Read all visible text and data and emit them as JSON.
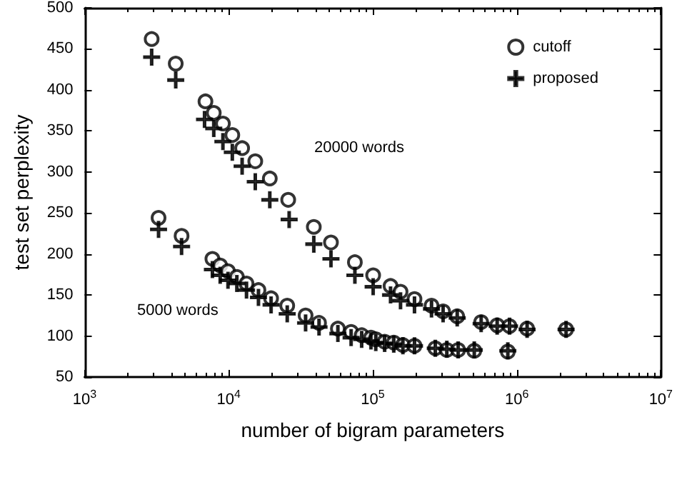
{
  "chart_data": {
    "type": "scatter",
    "xlabel": "number of bigram parameters",
    "ylabel": "test set perplexity",
    "log": "x",
    "xlim": [
      1000,
      10000000
    ],
    "xticks": [
      {
        "value": 1000,
        "label": "10$^{3}$"
      },
      {
        "value": 10000,
        "label": "10$^{4}$"
      },
      {
        "value": 100000,
        "label": "10$^{5}$"
      },
      {
        "value": 1000000,
        "label": "10$^{6}$"
      },
      {
        "value": 10000000,
        "label": "10$^{7}$"
      }
    ],
    "ylim": [
      50,
      500
    ],
    "yticks": [
      50,
      100,
      150,
      200,
      250,
      300,
      350,
      400,
      450,
      500
    ],
    "grid": false,
    "legend": "top right",
    "series": [
      {
        "name": "cutoff",
        "color": "#000000",
        "marker": "circle",
        "x": [
          2920,
          4290,
          6900,
          7880,
          9120,
          10600,
          12400,
          15300,
          19300,
          25900,
          39000,
          51300,
          75200,
          100700,
          133000,
          156000,
          195000,
          256000,
          308000,
          386000,
          566000,
          731000,
          891000,
          1180000,
          2200000,
          3260,
          4710,
          7710,
          8730,
          9890,
          11400,
          13300,
          16100,
          19700,
          25500,
          34200,
          42400,
          57300,
          70800,
          83800,
          97200,
          105000,
          121000,
          140000,
          162000,
          195000,
          272000,
          327000,
          392000,
          507000,
          867000
        ],
        "values": [
          462,
          432,
          386,
          372,
          359,
          345,
          329,
          313,
          292,
          266,
          233,
          214,
          190,
          174,
          161,
          154,
          145,
          137,
          130,
          124,
          117,
          113,
          112,
          109,
          108,
          244,
          222,
          194,
          186,
          179,
          172,
          164,
          156,
          146,
          137,
          125,
          116,
          109,
          105,
          101,
          98,
          96,
          93,
          92,
          89,
          88,
          85,
          83,
          83,
          82,
          81
        ]
      },
      {
        "name": "proposed",
        "color": "#000000",
        "marker": "cross",
        "x": [
          2920,
          4290,
          6800,
          7880,
          9120,
          10600,
          12400,
          15300,
          19300,
          26300,
          39000,
          51300,
          75200,
          100700,
          133000,
          156000,
          195000,
          256000,
          308000,
          386000,
          566000,
          731000,
          891000,
          1180000,
          2200000,
          3260,
          4710,
          7710,
          8730,
          9890,
          11400,
          13300,
          16100,
          19700,
          25500,
          34200,
          42400,
          57300,
          70800,
          83800,
          97200,
          105000,
          121000,
          140000,
          162000,
          195000,
          272000,
          327000,
          392000,
          507000,
          867000
        ],
        "values": [
          440,
          412,
          364,
          353,
          337,
          324,
          307,
          288,
          266,
          242,
          212,
          194,
          174,
          160,
          150,
          143,
          138,
          133,
          127,
          122,
          115,
          112,
          112,
          108,
          108,
          230,
          209,
          181,
          174,
          168,
          164,
          156,
          147,
          138,
          127,
          116,
          111,
          103,
          98,
          96,
          94,
          92,
          91,
          90,
          88,
          88,
          85,
          84,
          83,
          83,
          82
        ]
      }
    ],
    "annotations": [
      "20000 words",
      "5000 words"
    ]
  }
}
